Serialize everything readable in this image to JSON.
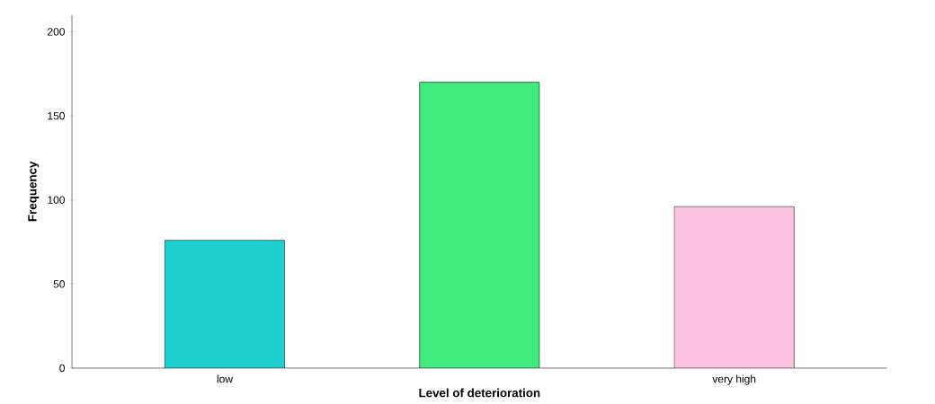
{
  "chart_data": {
    "type": "bar",
    "xlabel": "Level of deterioration",
    "ylabel": "Frequency",
    "categories": [
      "low",
      null,
      "very high"
    ],
    "values": [
      76,
      170,
      96
    ],
    "colors": [
      "#1dcfcf",
      "#41ea7c",
      "#fdc3e1"
    ],
    "ylim": [
      0,
      210
    ],
    "yticks": [
      0,
      50,
      100,
      150,
      200
    ],
    "grid": false
  }
}
